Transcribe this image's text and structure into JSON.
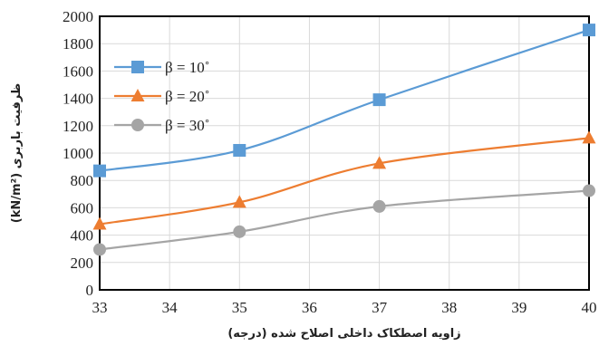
{
  "chart_data": {
    "type": "line",
    "title": "",
    "xlabel": "زاویه اصطکاک داخلی اصلاح شده (درجه)",
    "ylabel": "ظرفیت باربری (kN/m²)",
    "xlim": [
      33,
      40
    ],
    "ylim": [
      0,
      2000
    ],
    "xticks": [
      "33",
      "34",
      "35",
      "36",
      "37",
      "38",
      "39",
      "40"
    ],
    "yticks": [
      "0",
      "200",
      "400",
      "600",
      "800",
      "1000",
      "1200",
      "1400",
      "1600",
      "1800",
      "2000"
    ],
    "grid": true,
    "legend_position": "top-left",
    "x": [
      33,
      35,
      37,
      40
    ],
    "series": [
      {
        "name": "β = 10˚",
        "values": [
          870,
          1020,
          1390,
          1900
        ],
        "color": "#5B9BD5",
        "marker": "square"
      },
      {
        "name": "β = 20˚",
        "values": [
          480,
          640,
          925,
          1110
        ],
        "color": "#ED7D31",
        "marker": "triangle"
      },
      {
        "name": "β = 30˚",
        "values": [
          295,
          425,
          610,
          725
        ],
        "color": "#A5A5A5",
        "marker": "circle"
      }
    ]
  }
}
